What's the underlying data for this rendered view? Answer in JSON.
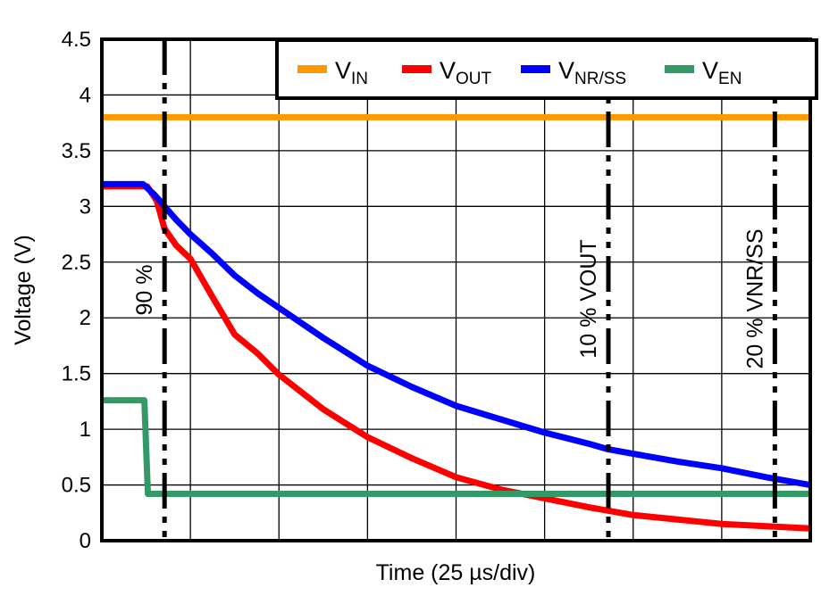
{
  "chart_data": {
    "type": "line",
    "title": "",
    "xlabel": "Time (25 µs/div)",
    "ylabel": "Voltage (V)",
    "x_unit": "µs",
    "xlim": [
      0,
      200
    ],
    "ylim": [
      0,
      4.5
    ],
    "x_divisions": 8,
    "yticks": [
      "0",
      "0.5",
      "1",
      "1.5",
      "2",
      "2.5",
      "3",
      "3.5",
      "4",
      "4.5"
    ],
    "grid": true,
    "legend_position": "top-right",
    "series": [
      {
        "name": "VIN",
        "label_main": "V",
        "label_sub": "IN",
        "color": "#ff9900",
        "x": [
          0,
          200
        ],
        "y": [
          3.8,
          3.8
        ]
      },
      {
        "name": "VOUT",
        "label_main": "V",
        "label_sub": "OUT",
        "color": "#ff0000",
        "x": [
          0,
          5,
          12.8,
          15.5,
          17.7,
          21,
          25,
          31,
          37.5,
          44,
          50,
          62.5,
          75,
          87.5,
          100,
          112.5,
          125,
          137.5,
          150,
          162.5,
          175,
          187.5,
          200
        ],
        "y": [
          3.18,
          3.18,
          3.18,
          3.05,
          2.8,
          2.65,
          2.53,
          2.2,
          1.85,
          1.68,
          1.49,
          1.18,
          0.93,
          0.74,
          0.57,
          0.46,
          0.38,
          0.3,
          0.23,
          0.19,
          0.15,
          0.13,
          0.11
        ]
      },
      {
        "name": "VNR/SS",
        "label_main": "V",
        "label_sub": "NR/SS",
        "color": "#0000ff",
        "x": [
          0,
          5,
          11.6,
          15,
          17.7,
          21,
          25,
          31,
          37.5,
          44,
          50,
          62.5,
          75,
          87.5,
          100,
          112.5,
          125,
          137.5,
          143,
          150,
          162.5,
          175,
          187.5,
          200
        ],
        "y": [
          3.2,
          3.2,
          3.2,
          3.1,
          3.0,
          2.88,
          2.75,
          2.58,
          2.38,
          2.22,
          2.09,
          1.82,
          1.57,
          1.38,
          1.21,
          1.09,
          0.97,
          0.87,
          0.82,
          0.78,
          0.71,
          0.65,
          0.57,
          0.5
        ]
      },
      {
        "name": "VEN",
        "label_main": "V",
        "label_sub": "EN",
        "color": "#339966",
        "x": [
          0,
          12,
          13,
          200
        ],
        "y": [
          1.26,
          1.26,
          0.42,
          0.42
        ]
      }
    ],
    "annotations": [
      {
        "x": 17.7,
        "label": "90 %",
        "label_main": "90 %",
        "label_sub": ""
      },
      {
        "x": 143,
        "label": "10 % VOUT",
        "label_main": "10 % V",
        "label_sub": "OUT"
      },
      {
        "x": 190,
        "label": "20 % VNR/SS",
        "label_main": "20 % V",
        "label_sub": "NR/SS"
      }
    ]
  }
}
